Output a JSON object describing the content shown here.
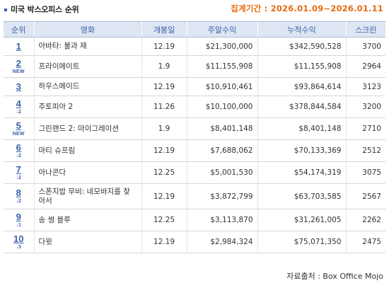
{
  "header": {
    "title": "미국 박스오피스 순위",
    "period_label": "집계기간",
    "period_value": "2026.01.09~2026.01.11"
  },
  "columns": [
    "순위",
    "영화",
    "개봉일",
    "주말수익",
    "누적수익",
    "스크린"
  ],
  "rows": [
    {
      "rank": "1",
      "change": "",
      "title": "아바타: 불과 재",
      "release": "12.19",
      "weekend": "$21,300,000",
      "total": "$342,590,528",
      "screens": "3700"
    },
    {
      "rank": "2",
      "change": "NEW",
      "title": "프라이메이트",
      "release": "1.9",
      "weekend": "$11,155,908",
      "total": "$11,155,908",
      "screens": "2964"
    },
    {
      "rank": "3",
      "change": "",
      "title": "하우스메이드",
      "release": "12.19",
      "weekend": "$10,910,461",
      "total": "$93,864,614",
      "screens": "3123"
    },
    {
      "rank": "4",
      "change": "↓2",
      "title": "주토피아 2",
      "release": "11.26",
      "weekend": "$10,100,000",
      "total": "$378,844,584",
      "screens": "3200"
    },
    {
      "rank": "5",
      "change": "NEW",
      "title": "그린랜드 2: 마이그레이션",
      "release": "1.9",
      "weekend": "$8,401,148",
      "total": "$8,401,148",
      "screens": "2710"
    },
    {
      "rank": "6",
      "change": "↓2",
      "title": "마티 슈프림",
      "release": "12.19",
      "weekend": "$7,688,062",
      "total": "$70,133,369",
      "screens": "2512"
    },
    {
      "rank": "7",
      "change": "↓2",
      "title": "아나콘다",
      "release": "12.25",
      "weekend": "$5,001,530",
      "total": "$54,174,319",
      "screens": "3075"
    },
    {
      "rank": "8",
      "change": "↓2",
      "title": "스폰지밥 무비: 네모바지를 찾아서",
      "release": "12.19",
      "weekend": "$3,872,799",
      "total": "$63,703,585",
      "screens": "2567"
    },
    {
      "rank": "9",
      "change": "↓1",
      "title": "송 썽 블루",
      "release": "12.25",
      "weekend": "$3,113,870",
      "total": "$31,261,005",
      "screens": "2262"
    },
    {
      "rank": "10",
      "change": "↓3",
      "title": "다윗",
      "release": "12.19",
      "weekend": "$2,984,324",
      "total": "$75,071,350",
      "screens": "2475"
    }
  ],
  "footer": {
    "source": "자료출처 : Box Office Mojo"
  },
  "colors": {
    "accent_blue": "#3a5fa8",
    "period_orange": "#e66a12",
    "header_bg": "#dde6f2"
  }
}
